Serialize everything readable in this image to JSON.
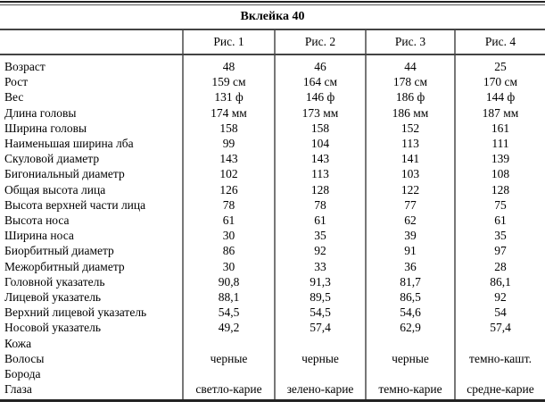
{
  "title": "Вклейка 40",
  "table": {
    "column_headers": [
      "Рис. 1",
      "Рис. 2",
      "Рис. 3",
      "Рис. 4"
    ],
    "rows": [
      {
        "label": "Возраст",
        "values": [
          "48",
          "46",
          "44",
          "25"
        ]
      },
      {
        "label": "Рост",
        "values": [
          "159 см",
          "164 см",
          "178 см",
          "170 см"
        ]
      },
      {
        "label": "Вес",
        "values": [
          "131 ф",
          "146 ф",
          "186 ф",
          "144 ф"
        ]
      },
      {
        "label": "Длина головы",
        "values": [
          "174 мм",
          "173 мм",
          "186 мм",
          "187 мм"
        ]
      },
      {
        "label": "Ширина головы",
        "values": [
          "158",
          "158",
          "152",
          "161"
        ]
      },
      {
        "label": "Наименьшая ширина лба",
        "values": [
          "99",
          "104",
          "113",
          "111"
        ]
      },
      {
        "label": "Скуловой диаметр",
        "values": [
          "143",
          "143",
          "141",
          "139"
        ]
      },
      {
        "label": "Бигониальный диаметр",
        "values": [
          "102",
          "113",
          "103",
          "108"
        ]
      },
      {
        "label": "Общая высота лица",
        "values": [
          "126",
          "128",
          "122",
          "128"
        ]
      },
      {
        "label": "Высота верхней части лица",
        "values": [
          "78",
          "78",
          "77",
          "75"
        ]
      },
      {
        "label": "Высота носа",
        "values": [
          "61",
          "61",
          "62",
          "61"
        ]
      },
      {
        "label": "Ширина носа",
        "values": [
          "30",
          "35",
          "39",
          "35"
        ]
      },
      {
        "label": "Биорбитный диаметр",
        "values": [
          "86",
          "92",
          "91",
          "97"
        ]
      },
      {
        "label": "Межорбитный диаметр",
        "values": [
          "30",
          "33",
          "36",
          "28"
        ]
      },
      {
        "label": "Головной указатель",
        "values": [
          "90,8",
          "91,3",
          "81,7",
          "86,1"
        ]
      },
      {
        "label": "Лицевой указатель",
        "values": [
          "88,1",
          "89,5",
          "86,5",
          "92"
        ]
      },
      {
        "label": "Верхний лицевой указатель",
        "values": [
          "54,5",
          "54,5",
          "54,6",
          "54"
        ]
      },
      {
        "label": "Носовой указатель",
        "values": [
          "49,2",
          "57,4",
          "62,9",
          "57,4"
        ]
      },
      {
        "label": "Кожа",
        "values": [
          "",
          "",
          "",
          ""
        ]
      },
      {
        "label": "Волосы",
        "values": [
          "черные",
          "черные",
          "черные",
          "темно-кашт."
        ]
      },
      {
        "label": "Борода",
        "values": [
          "",
          "",
          "",
          ""
        ]
      },
      {
        "label": "Глаза",
        "values": [
          "светло-карие",
          "зелено-карие",
          "темно-карие",
          "средне-карие"
        ]
      }
    ]
  }
}
